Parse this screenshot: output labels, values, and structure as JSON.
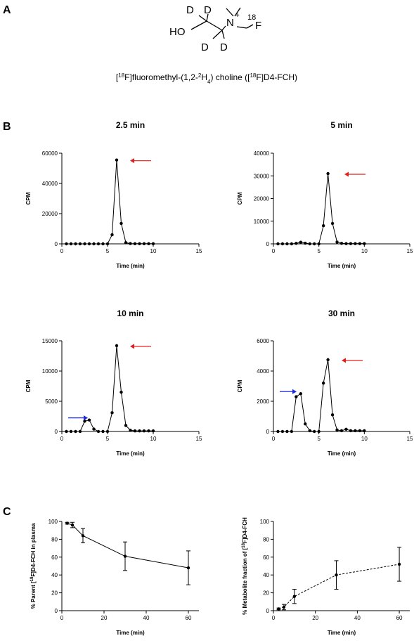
{
  "panels": {
    "a": "A",
    "b": "B",
    "c": "C"
  },
  "structure": {
    "caption_parts": [
      "[",
      "18",
      "F]fluoromethyl-(1,2-",
      "2",
      "H",
      "4",
      ") choline ([",
      "18",
      "F]D4-FCH)"
    ],
    "atoms": {
      "ho": "HO",
      "d": "D",
      "n": "N",
      "plus": "+",
      "f": "F",
      "iso": "18"
    }
  },
  "chart_data": [
    {
      "type": "line",
      "title": "2.5 min",
      "xlabel": "Time (min)",
      "ylabel": "CPM",
      "xlim": [
        0,
        15
      ],
      "ylim": [
        0,
        60000
      ],
      "xticks": [
        0,
        5,
        10,
        15
      ],
      "yticks": [
        0,
        20000,
        40000,
        60000
      ],
      "x": [
        0.5,
        1,
        1.5,
        2,
        2.5,
        3,
        3.5,
        4,
        4.5,
        5,
        5.5,
        6,
        6.5,
        7,
        7.5,
        8,
        8.5,
        9,
        9.5,
        10
      ],
      "series": [
        {
          "values": [
            0,
            0,
            0,
            0,
            0,
            0,
            0,
            0,
            0,
            0,
            6000,
            55500,
            13500,
            800,
            200,
            100,
            100,
            100,
            100,
            100
          ]
        }
      ],
      "annotations": [
        {
          "type": "arrow",
          "color": "#e0201c",
          "points_to": "parent peak"
        }
      ]
    },
    {
      "type": "line",
      "title": "5 min",
      "xlabel": "Time (min)",
      "ylabel": "CPM",
      "xlim": [
        0,
        15
      ],
      "ylim": [
        0,
        40000
      ],
      "xticks": [
        0,
        5,
        10,
        15
      ],
      "yticks": [
        0,
        10000,
        20000,
        30000,
        40000
      ],
      "x": [
        0.5,
        1,
        1.5,
        2,
        2.5,
        3,
        3.5,
        4,
        4.5,
        5,
        5.5,
        6,
        6.5,
        7,
        7.5,
        8,
        8.5,
        9,
        9.5,
        10
      ],
      "series": [
        {
          "values": [
            0,
            0,
            0,
            0,
            200,
            700,
            300,
            0,
            0,
            0,
            8000,
            31000,
            9000,
            800,
            200,
            100,
            100,
            100,
            100,
            100
          ]
        }
      ],
      "annotations": [
        {
          "type": "arrow",
          "color": "#e0201c",
          "points_to": "parent peak"
        }
      ]
    },
    {
      "type": "line",
      "title": "10 min",
      "xlabel": "Time (min)",
      "ylabel": "CPM",
      "xlim": [
        0,
        15
      ],
      "ylim": [
        0,
        15000
      ],
      "xticks": [
        0,
        5,
        10,
        15
      ],
      "yticks": [
        0,
        5000,
        10000,
        15000
      ],
      "x": [
        0.5,
        1,
        1.5,
        2,
        2.5,
        3,
        3.5,
        4,
        4.5,
        5,
        5.5,
        6,
        6.5,
        7,
        7.5,
        8,
        8.5,
        9,
        9.5,
        10
      ],
      "series": [
        {
          "values": [
            0,
            0,
            0,
            0,
            1700,
            1900,
            400,
            0,
            0,
            0,
            3100,
            14200,
            6500,
            1000,
            200,
            100,
            100,
            100,
            100,
            100
          ]
        }
      ],
      "annotations": [
        {
          "type": "arrow",
          "color": "#1c2be0",
          "points_to": "metabolite peak"
        },
        {
          "type": "arrow",
          "color": "#e0201c",
          "points_to": "parent peak"
        }
      ]
    },
    {
      "type": "line",
      "title": "30 min",
      "xlabel": "Time (min)",
      "ylabel": "CPM",
      "xlim": [
        0,
        15
      ],
      "ylim": [
        0,
        6000
      ],
      "xticks": [
        0,
        5,
        10,
        15
      ],
      "yticks": [
        0,
        2000,
        4000,
        6000
      ],
      "x": [
        0.5,
        1,
        1.5,
        2,
        2.5,
        3,
        3.5,
        4,
        4.5,
        5,
        5.5,
        6,
        6.5,
        7,
        7.5,
        8,
        8.5,
        9,
        9.5,
        10
      ],
      "series": [
        {
          "values": [
            0,
            0,
            0,
            0,
            2300,
            2500,
            500,
            50,
            0,
            0,
            3200,
            4750,
            1100,
            100,
            50,
            150,
            50,
            50,
            50,
            50
          ]
        }
      ],
      "annotations": [
        {
          "type": "arrow",
          "color": "#1c2be0",
          "points_to": "metabolite peak"
        },
        {
          "type": "arrow",
          "color": "#e0201c",
          "points_to": "parent peak"
        }
      ]
    },
    {
      "type": "line",
      "title": "",
      "xlabel": "Time (min)",
      "ylabel_parts": [
        "% Parent [",
        "18",
        "F]D4-FCH in plasma"
      ],
      "xlim": [
        0,
        65
      ],
      "ylim": [
        0,
        100
      ],
      "xticks": [
        0,
        20,
        40,
        60
      ],
      "yticks": [
        0,
        20,
        40,
        60,
        80,
        100
      ],
      "line_style": "solid",
      "x": [
        2.5,
        5,
        10,
        30,
        60
      ],
      "series": [
        {
          "values": [
            98,
            96,
            84,
            61,
            48
          ],
          "error": [
            1,
            3,
            8,
            16,
            19
          ]
        }
      ]
    },
    {
      "type": "line",
      "title": "",
      "xlabel": "Time (min)",
      "ylabel_parts": [
        "% Metabolite fraction of [",
        "18",
        "F]D4-FCH"
      ],
      "xlim": [
        0,
        65
      ],
      "ylim": [
        0,
        100
      ],
      "xticks": [
        0,
        20,
        40,
        60
      ],
      "yticks": [
        0,
        20,
        40,
        60,
        80,
        100
      ],
      "line_style": "dashed",
      "x": [
        2.5,
        5,
        10,
        30,
        60
      ],
      "series": [
        {
          "values": [
            2,
            4,
            16,
            40,
            52
          ],
          "error": [
            1,
            3,
            8,
            16,
            19
          ]
        }
      ]
    }
  ]
}
